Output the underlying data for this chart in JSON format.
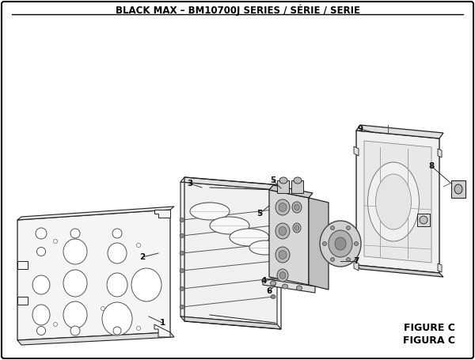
{
  "title": "BLACK MAX – BM10700J SERIES / SÉRIE / SERIE",
  "figure_label_1": "FIGURE C",
  "figure_label_2": "FIGURA C",
  "bg_color": "#ffffff",
  "border_color": "#000000",
  "line_color": "#222222",
  "title_fontsize": 8.5,
  "label_fontsize": 7.5,
  "figure_fontsize": 9
}
